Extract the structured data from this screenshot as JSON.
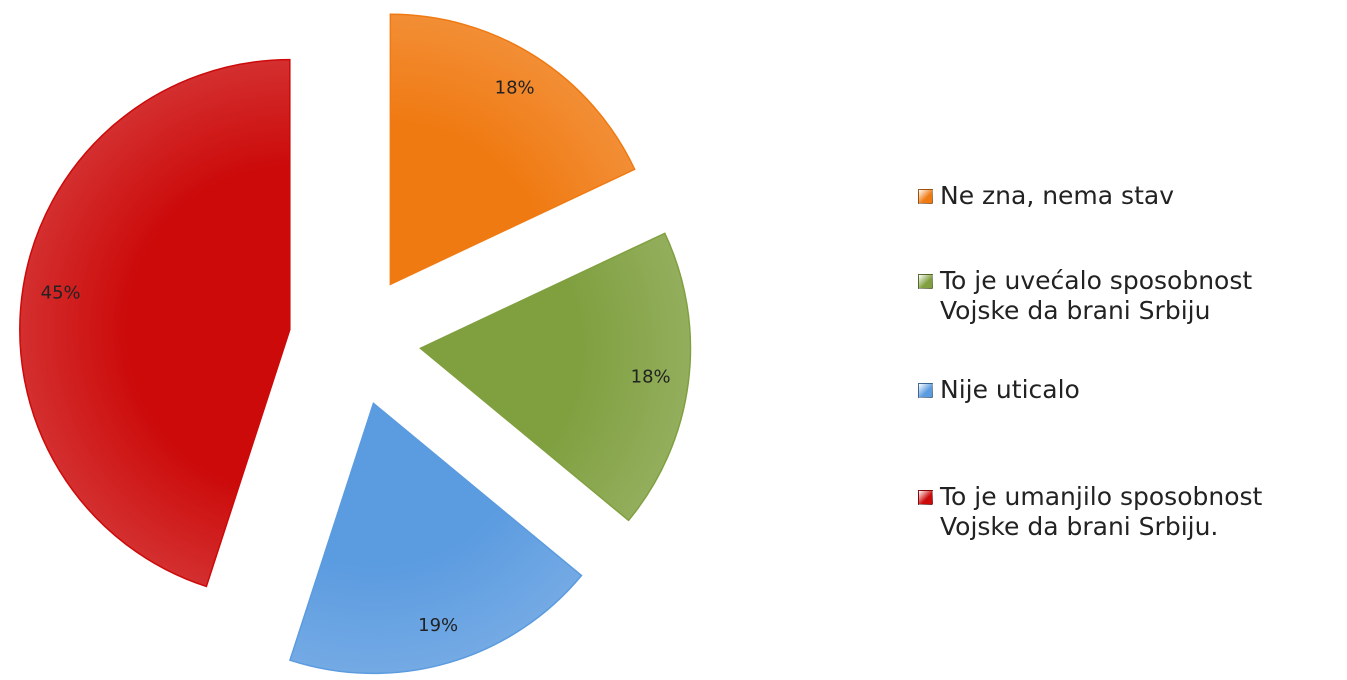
{
  "chart_data": {
    "type": "pie",
    "categories": [
      "Ne zna, nema stav",
      "To je uvećalo sposobnost Vojske da brani Srbiju",
      "Nije uticalo",
      "To je umanjilo sposobnost Vojske da brani Srbiju."
    ],
    "values": [
      18,
      18,
      19,
      45
    ],
    "value_labels": [
      "18%",
      "18%",
      "19%",
      "45%"
    ],
    "colors": [
      "#f07a12",
      "#80a040",
      "#5b9be0",
      "#cc0a0a"
    ],
    "exploded": true,
    "legend": "right"
  }
}
